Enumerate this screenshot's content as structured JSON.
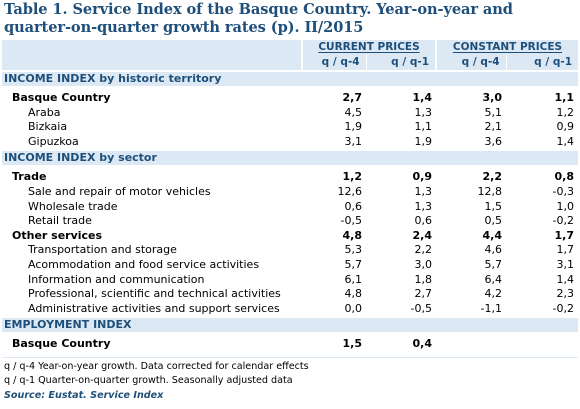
{
  "title": "Table 1. Service Index of the Basque Country. Year-on-year and quarter-on-quarter growth rates (p). II/2015",
  "header": {
    "current_prices": "CURRENT PRICES",
    "constant_prices": "CONSTANT PRICES",
    "col_yoy": "q / q-4",
    "col_qoq": "q / q-1"
  },
  "sections": {
    "income_territory": "INCOME INDEX by historic territory",
    "income_sector": "INCOME INDEX by sector",
    "employment": "EMPLOYMENT INDEX"
  },
  "rows": {
    "basque": {
      "label": "Basque Country",
      "v": [
        "2,7",
        "1,4",
        "3,0",
        "1,1"
      ]
    },
    "araba": {
      "label": "Araba",
      "v": [
        "4,5",
        "1,3",
        "5,1",
        "1,2"
      ]
    },
    "bizkaia": {
      "label": "Bizkaia",
      "v": [
        "1,9",
        "1,1",
        "2,1",
        "0,9"
      ]
    },
    "gipuzkoa": {
      "label": "Gipuzkoa",
      "v": [
        "3,1",
        "1,9",
        "3,6",
        "1,4"
      ]
    },
    "trade": {
      "label": "Trade",
      "v": [
        "1,2",
        "0,9",
        "2,2",
        "0,8"
      ]
    },
    "motor": {
      "label": "Sale and repair of motor vehicles",
      "v": [
        "12,6",
        "1,3",
        "12,8",
        "-0,3"
      ]
    },
    "wholesale": {
      "label": "Wholesale trade",
      "v": [
        "0,6",
        "1,3",
        "1,5",
        "1,0"
      ]
    },
    "retail": {
      "label": "Retail trade",
      "v": [
        "-0,5",
        "0,6",
        "0,5",
        "-0,2"
      ]
    },
    "other": {
      "label": "Other services",
      "v": [
        "4,8",
        "2,4",
        "4,4",
        "1,7"
      ]
    },
    "transport": {
      "label": "Transportation and storage",
      "v": [
        "5,3",
        "2,2",
        "4,6",
        "1,7"
      ]
    },
    "accommodation": {
      "label": "Acommodation and food service activities",
      "v": [
        "5,7",
        "3,0",
        "5,7",
        "3,1"
      ]
    },
    "information": {
      "label": "Information and communication",
      "v": [
        "6,1",
        "1,8",
        "6,4",
        "1,4"
      ]
    },
    "professional": {
      "label": "Professional, scientific and technical activities",
      "v": [
        "4,8",
        "2,7",
        "4,2",
        "2,3"
      ]
    },
    "administrative": {
      "label": "Administrative activities and support services",
      "v": [
        "0,0",
        "-0,5",
        "-1,1",
        "-0,2"
      ]
    },
    "employment_basque": {
      "label": "Basque Country",
      "v": [
        "1,5",
        "0,4"
      ]
    }
  },
  "footnotes": {
    "yoy": "q / q-4 Year-on-year growth. Data corrected for calendar effects",
    "qoq": "q / q-1 Quarter-on-quarter growth. Seasonally adjusted data",
    "source": "Source: Eustat. Service Index"
  },
  "colors": {
    "header_bg": "#dce9f5",
    "title": "#1e4f7a"
  }
}
